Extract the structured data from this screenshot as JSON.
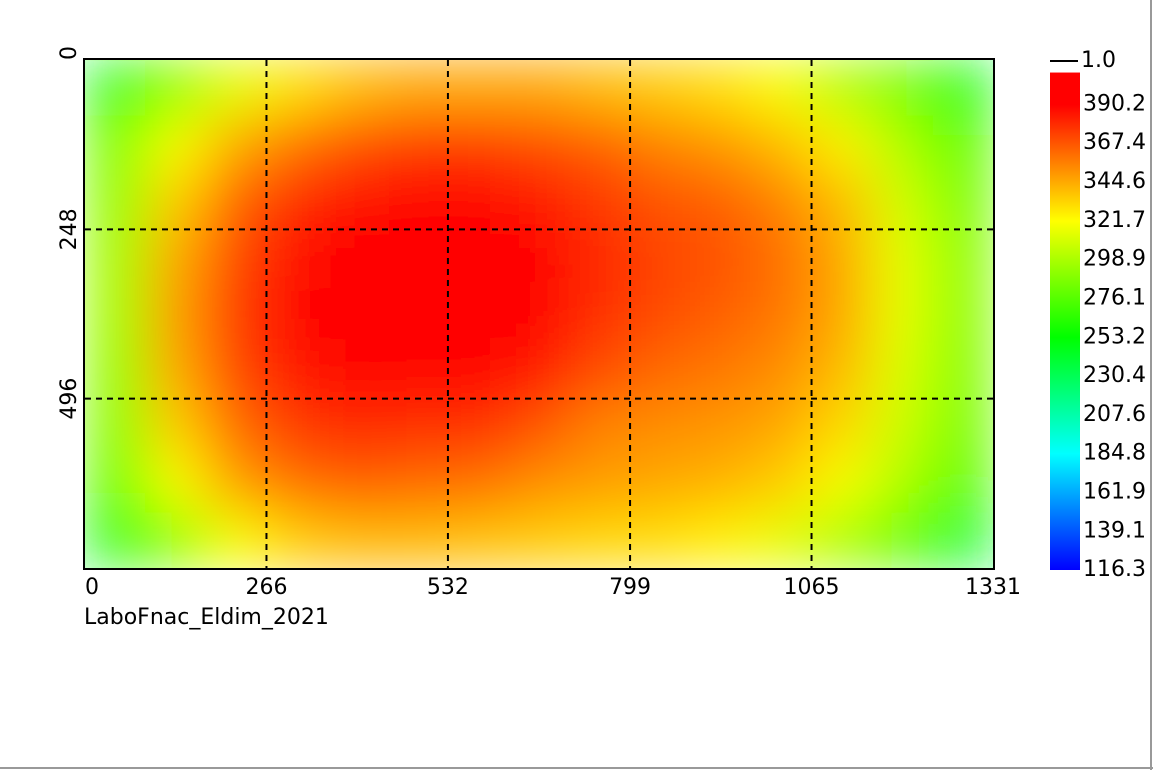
{
  "chart_data": {
    "type": "heatmap",
    "subtitle": "LaboFnac_Eldim_2021",
    "xlim": [
      0,
      1331
    ],
    "xticks": [
      0,
      266,
      532,
      799,
      1065,
      1331
    ],
    "ylim": [
      0,
      744
    ],
    "yticks": [
      0,
      248,
      496
    ],
    "grid": true,
    "values": [
      [
        250,
        290,
        315,
        330,
        340,
        345,
        345,
        345,
        340,
        335,
        330,
        320,
        300,
        285,
        245
      ],
      [
        285,
        320,
        345,
        360,
        370,
        375,
        375,
        370,
        365,
        355,
        350,
        340,
        325,
        300,
        280
      ],
      [
        290,
        335,
        365,
        380,
        388,
        392,
        395,
        385,
        375,
        368,
        365,
        355,
        340,
        310,
        285
      ],
      [
        295,
        345,
        372,
        388,
        395,
        398,
        400,
        392,
        380,
        372,
        368,
        360,
        345,
        315,
        290
      ],
      [
        295,
        348,
        375,
        390,
        395,
        398,
        400,
        392,
        378,
        370,
        365,
        358,
        345,
        315,
        290
      ],
      [
        292,
        345,
        372,
        385,
        390,
        392,
        395,
        385,
        370,
        362,
        358,
        352,
        340,
        312,
        288
      ],
      [
        288,
        335,
        362,
        375,
        380,
        378,
        378,
        368,
        355,
        352,
        350,
        345,
        332,
        308,
        285
      ],
      [
        280,
        320,
        348,
        360,
        365,
        362,
        360,
        352,
        348,
        345,
        342,
        335,
        320,
        300,
        278
      ],
      [
        245,
        290,
        320,
        335,
        340,
        340,
        338,
        335,
        332,
        330,
        325,
        315,
        298,
        280,
        240
      ]
    ],
    "colormap": [
      {
        "value": 116.3,
        "color": "#0000ff"
      },
      {
        "value": 184.8,
        "color": "#00ffff"
      },
      {
        "value": 253.2,
        "color": "#00ff00"
      },
      {
        "value": 321.7,
        "color": "#ffff00"
      },
      {
        "value": 390.2,
        "color": "#ff0000"
      }
    ],
    "clim": [
      116.3,
      409
    ],
    "colorbar_ticks": [
      116.3,
      139.1,
      161.9,
      184.8,
      207.6,
      230.4,
      253.2,
      276.1,
      298.9,
      321.7,
      344.6,
      367.4,
      390.2
    ],
    "colorbar_top_label": "1.0"
  }
}
